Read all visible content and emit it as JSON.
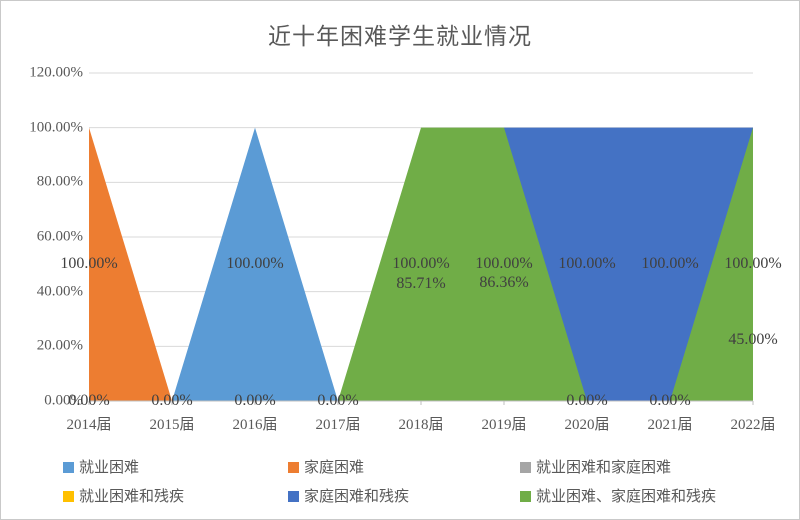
{
  "title": "近十年困难学生就业情况",
  "colors": {
    "background": "#FFFFFF",
    "border": "#C9C9C9",
    "title_text": "#595959",
    "axis_text": "#595959",
    "label_text": "#404040",
    "gridline": "#D9D9D9",
    "axis_line": "#BFBFBF"
  },
  "chart_data": {
    "type": "area",
    "title": "近十年困难学生就业情况",
    "unit": "percent",
    "grid": true,
    "legend_position": "bottom",
    "categories": [
      "2014届",
      "2015届",
      "2016届",
      "2017届",
      "2018届",
      "2019届",
      "2020届",
      "2021届",
      "2022届"
    ],
    "series": [
      {
        "name": "就业困难",
        "color": "#5B9BD5",
        "values": [
          0,
          0,
          100,
          0,
          null,
          null,
          null,
          null,
          null
        ]
      },
      {
        "name": "家庭困难",
        "color": "#ED7D31",
        "values": [
          100,
          0,
          null,
          null,
          null,
          null,
          null,
          null,
          null
        ]
      },
      {
        "name": "就业困难和家庭困难",
        "color": "#A5A5A5",
        "values": [
          null,
          null,
          null,
          null,
          85.71,
          86.36,
          null,
          null,
          null
        ]
      },
      {
        "name": "就业困难和残疾",
        "color": "#FFC000",
        "values": [
          null,
          null,
          null,
          null,
          null,
          null,
          null,
          null,
          45
        ]
      },
      {
        "name": "家庭困难和残疾",
        "color": "#4472C4",
        "values": [
          null,
          null,
          null,
          null,
          null,
          100,
          100,
          100,
          100
        ]
      },
      {
        "name": "就业困难、家庭困难和残疾",
        "color": "#70AD47",
        "values": [
          null,
          null,
          0,
          0,
          100,
          100,
          0,
          0,
          100
        ]
      }
    ],
    "y_axis": {
      "min": 0,
      "max": 120,
      "step": 20,
      "ticks": [
        {
          "v": 0,
          "t": "0.00%"
        },
        {
          "v": 20,
          "t": "20.00%"
        },
        {
          "v": 40,
          "t": "40.00%"
        },
        {
          "v": 60,
          "t": "60.00%"
        },
        {
          "v": 80,
          "t": "80.00%"
        },
        {
          "v": 100,
          "t": "100.00%"
        },
        {
          "v": 120,
          "t": "120.00%"
        }
      ]
    },
    "data_labels": [
      {
        "c": 0,
        "value": 100,
        "text": "100.00%"
      },
      {
        "c": 0,
        "value": 0,
        "text": "0.00%"
      },
      {
        "c": 1,
        "value": 0,
        "text": "0.00%"
      },
      {
        "c": 2,
        "value": 100,
        "text": "100.00%"
      },
      {
        "c": 2,
        "value": 0,
        "text": "0.00%"
      },
      {
        "c": 3,
        "value": 0,
        "text": "0.00%"
      },
      {
        "c": 4,
        "value": 100,
        "text": "100.00%"
      },
      {
        "c": 4,
        "value": 85.71,
        "text": "85.71%"
      },
      {
        "c": 5,
        "value": 100,
        "text": "100.00%"
      },
      {
        "c": 5,
        "value": 86.36,
        "text": "86.36%"
      },
      {
        "c": 6,
        "value": 100,
        "text": "100.00%"
      },
      {
        "c": 6,
        "value": 0,
        "text": "0.00%"
      },
      {
        "c": 7,
        "value": 100,
        "text": "100.00%"
      },
      {
        "c": 7,
        "value": 0,
        "text": "0.00%"
      },
      {
        "c": 8,
        "value": 100,
        "text": "100.00%"
      },
      {
        "c": 8,
        "value": 45,
        "text": "45.00%"
      }
    ]
  }
}
